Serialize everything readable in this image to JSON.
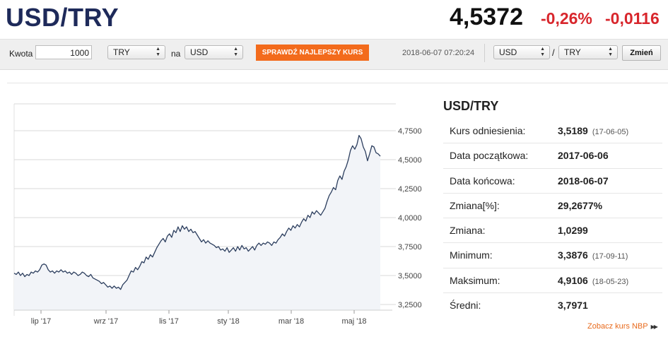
{
  "header": {
    "pair": "USD/TRY",
    "rate": "4,5372",
    "change_pct": "-0,26%",
    "change_abs": "-0,0116"
  },
  "converter": {
    "amount_label": "Kwota",
    "amount_value": "1000",
    "from_currency": "TRY",
    "na_label": "na",
    "to_currency": "USD",
    "cta_label": "SPRAWDŹ NAJLEPSZY KURS",
    "timestamp": "2018-06-07 07:20:24",
    "pair_from": "USD",
    "slash": "/",
    "pair_to": "TRY",
    "swap_label": "Zmień"
  },
  "side": {
    "title": "USD/TRY",
    "stats": [
      {
        "label": "Kurs odniesienia:",
        "value": "3,5189",
        "date": "(17-06-05)"
      },
      {
        "label": "Data początkowa:",
        "value": "2017-06-06",
        "date": ""
      },
      {
        "label": "Data końcowa:",
        "value": "2018-06-07",
        "date": ""
      },
      {
        "label": "Zmiana[%]:",
        "value": "29,2677%",
        "date": ""
      },
      {
        "label": "Zmiana:",
        "value": "1,0299",
        "date": ""
      },
      {
        "label": "Minimum:",
        "value": "3,3876",
        "date": "(17-09-11)"
      },
      {
        "label": "Maksimum:",
        "value": "4,9106",
        "date": "(18-05-23)"
      },
      {
        "label": "Średni:",
        "value": "3,7971",
        "date": ""
      }
    ],
    "nbp_link": "Zobacz kurs NBP",
    "nbp_arrow": "▶▶"
  },
  "colors": {
    "title": "#1e2a5a",
    "negative": "#d8262c",
    "cta": "#f36b1c",
    "line": "#2c3e5e",
    "area": "#f2f4f8"
  },
  "chart_data": {
    "type": "area",
    "x_ticks": [
      "lip '17",
      "wrz '17",
      "lis '17",
      "sty '18",
      "mar '18",
      "maj '18"
    ],
    "y_ticks": [
      "4,7500",
      "4,5000",
      "4,2500",
      "4,0000",
      "3,7500",
      "3,5000",
      "3,2500"
    ],
    "ylim": [
      3.25,
      4.9
    ],
    "series": [
      {
        "values": [
          3.52,
          3.51,
          3.53,
          3.5,
          3.52,
          3.49,
          3.51,
          3.5,
          3.53,
          3.52,
          3.54,
          3.53,
          3.55,
          3.59,
          3.6,
          3.59,
          3.55,
          3.53,
          3.54,
          3.52,
          3.54,
          3.53,
          3.55,
          3.53,
          3.54,
          3.52,
          3.53,
          3.51,
          3.53,
          3.52,
          3.5,
          3.51,
          3.53,
          3.52,
          3.5,
          3.49,
          3.51,
          3.48,
          3.47,
          3.46,
          3.45,
          3.43,
          3.44,
          3.42,
          3.4,
          3.41,
          3.39,
          3.41,
          3.39,
          3.4,
          3.38,
          3.42,
          3.44,
          3.46,
          3.5,
          3.54,
          3.53,
          3.57,
          3.55,
          3.58,
          3.62,
          3.61,
          3.66,
          3.64,
          3.68,
          3.66,
          3.7,
          3.74,
          3.77,
          3.8,
          3.82,
          3.79,
          3.84,
          3.86,
          3.83,
          3.89,
          3.87,
          3.92,
          3.88,
          3.93,
          3.9,
          3.92,
          3.88,
          3.9,
          3.87,
          3.88,
          3.85,
          3.82,
          3.79,
          3.81,
          3.78,
          3.8,
          3.78,
          3.77,
          3.76,
          3.74,
          3.75,
          3.72,
          3.73,
          3.71,
          3.74,
          3.7,
          3.72,
          3.74,
          3.71,
          3.75,
          3.72,
          3.76,
          3.73,
          3.74,
          3.71,
          3.73,
          3.75,
          3.72,
          3.76,
          3.78,
          3.76,
          3.78,
          3.77,
          3.79,
          3.78,
          3.76,
          3.79,
          3.78,
          3.81,
          3.83,
          3.86,
          3.84,
          3.88,
          3.91,
          3.89,
          3.93,
          3.91,
          3.94,
          3.92,
          3.96,
          3.99,
          3.97,
          4.02,
          4.0,
          4.05,
          4.03,
          4.06,
          4.04,
          4.02,
          4.05,
          4.08,
          4.14,
          4.19,
          4.22,
          4.26,
          4.24,
          4.32,
          4.36,
          4.33,
          4.4,
          4.44,
          4.5,
          4.58,
          4.62,
          4.59,
          4.63,
          4.71,
          4.68,
          4.61,
          4.57,
          4.49,
          4.55,
          4.62,
          4.61,
          4.56,
          4.55,
          4.53
        ]
      }
    ]
  }
}
